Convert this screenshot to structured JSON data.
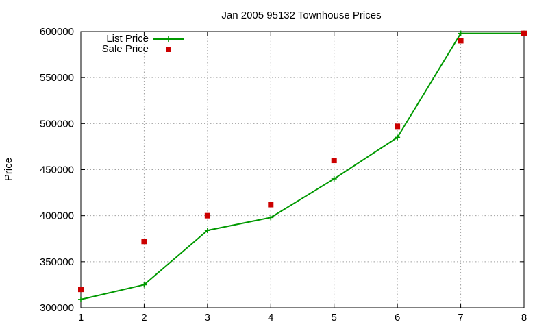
{
  "chart_data": {
    "type": "line",
    "title": "Jan 2005 95132 Townhouse Prices",
    "xlabel": "",
    "ylabel": "Price",
    "xlim": [
      1,
      8
    ],
    "ylim": [
      300000,
      600000
    ],
    "xticks": [
      1,
      2,
      3,
      4,
      5,
      6,
      7,
      8
    ],
    "yticks": [
      300000,
      350000,
      400000,
      450000,
      500000,
      550000,
      600000
    ],
    "grid": true,
    "legend_position": "top-left",
    "series": [
      {
        "name": "List Price",
        "style": "line-with-plus-markers",
        "color": "#009900",
        "x": [
          1,
          2,
          3,
          4,
          5,
          6,
          7,
          8
        ],
        "y": [
          309000,
          325000,
          384000,
          398000,
          440000,
          485000,
          598000,
          598000
        ]
      },
      {
        "name": "Sale Price",
        "style": "square-markers",
        "color": "#cc0000",
        "x": [
          1,
          2,
          3,
          4,
          5,
          6,
          7,
          8
        ],
        "y": [
          320000,
          372000,
          400000,
          412000,
          460000,
          497000,
          590000,
          598000
        ]
      }
    ]
  }
}
